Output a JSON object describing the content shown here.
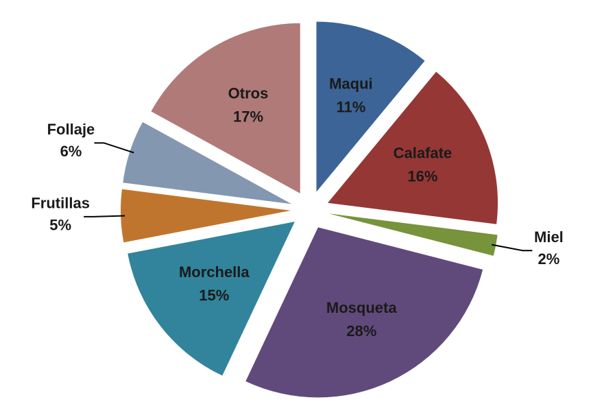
{
  "chart_data": {
    "type": "pie",
    "categories": [
      "Maqui",
      "Calafate",
      "Miel",
      "Mosqueta",
      "Morchella",
      "Frutillas",
      "Follaje",
      "Otros"
    ],
    "values": [
      11,
      16,
      2,
      28,
      15,
      5,
      6,
      17
    ],
    "value_labels": [
      "11%",
      "16%",
      "2%",
      "28%",
      "15%",
      "5%",
      "6%",
      "17%"
    ],
    "colors": [
      "#3c6496",
      "#953735",
      "#77933c",
      "#604a7b",
      "#31849b",
      "#c0752e",
      "#8497b0",
      "#b07a78"
    ],
    "exploded": true
  }
}
